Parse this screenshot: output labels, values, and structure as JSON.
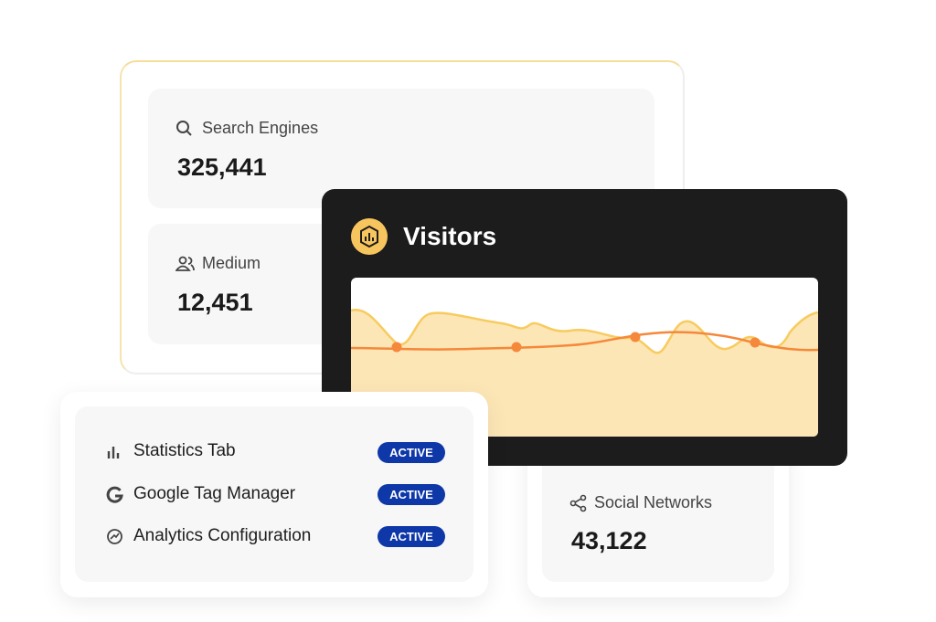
{
  "cards": [
    {
      "label": "Search Engines",
      "value": "325,441"
    },
    {
      "label": "Medium",
      "value": "12,451"
    },
    {
      "label": "Social Networks",
      "value": "43,122"
    }
  ],
  "visitors": {
    "title": "Visitors"
  },
  "integrations": [
    {
      "name": "Statistics Tab",
      "status": "ACTIVE"
    },
    {
      "name": "Google Tag Manager",
      "status": "ACTIVE"
    },
    {
      "name": "Analytics Configuration",
      "status": "ACTIVE"
    }
  ]
}
